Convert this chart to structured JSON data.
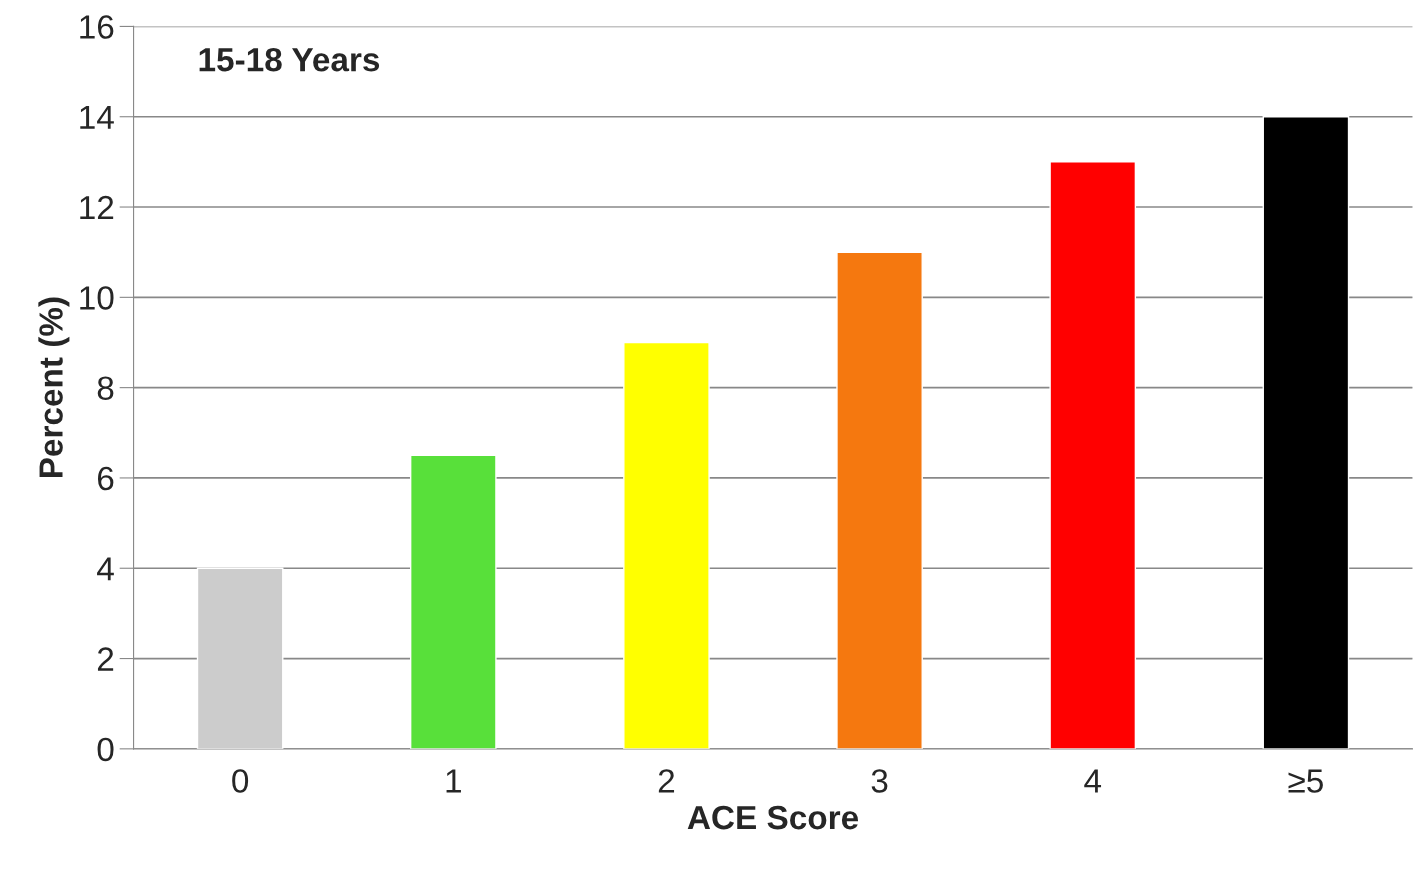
{
  "chart_data": {
    "type": "bar",
    "title": "15-18 Years",
    "xlabel": "ACE Score",
    "ylabel": "Percent (%)",
    "categories": [
      "0",
      "1",
      "2",
      "3",
      "4",
      "≥5"
    ],
    "values": [
      4,
      6.5,
      9,
      11,
      13,
      14
    ],
    "colors": [
      "#cccccc",
      "#58e03a",
      "#ffff00",
      "#f5780f",
      "#ff0000",
      "#000000"
    ],
    "ylim": [
      0,
      16
    ],
    "yticks": [
      0,
      2,
      4,
      6,
      8,
      10,
      12,
      14,
      16
    ],
    "grid": "y"
  }
}
